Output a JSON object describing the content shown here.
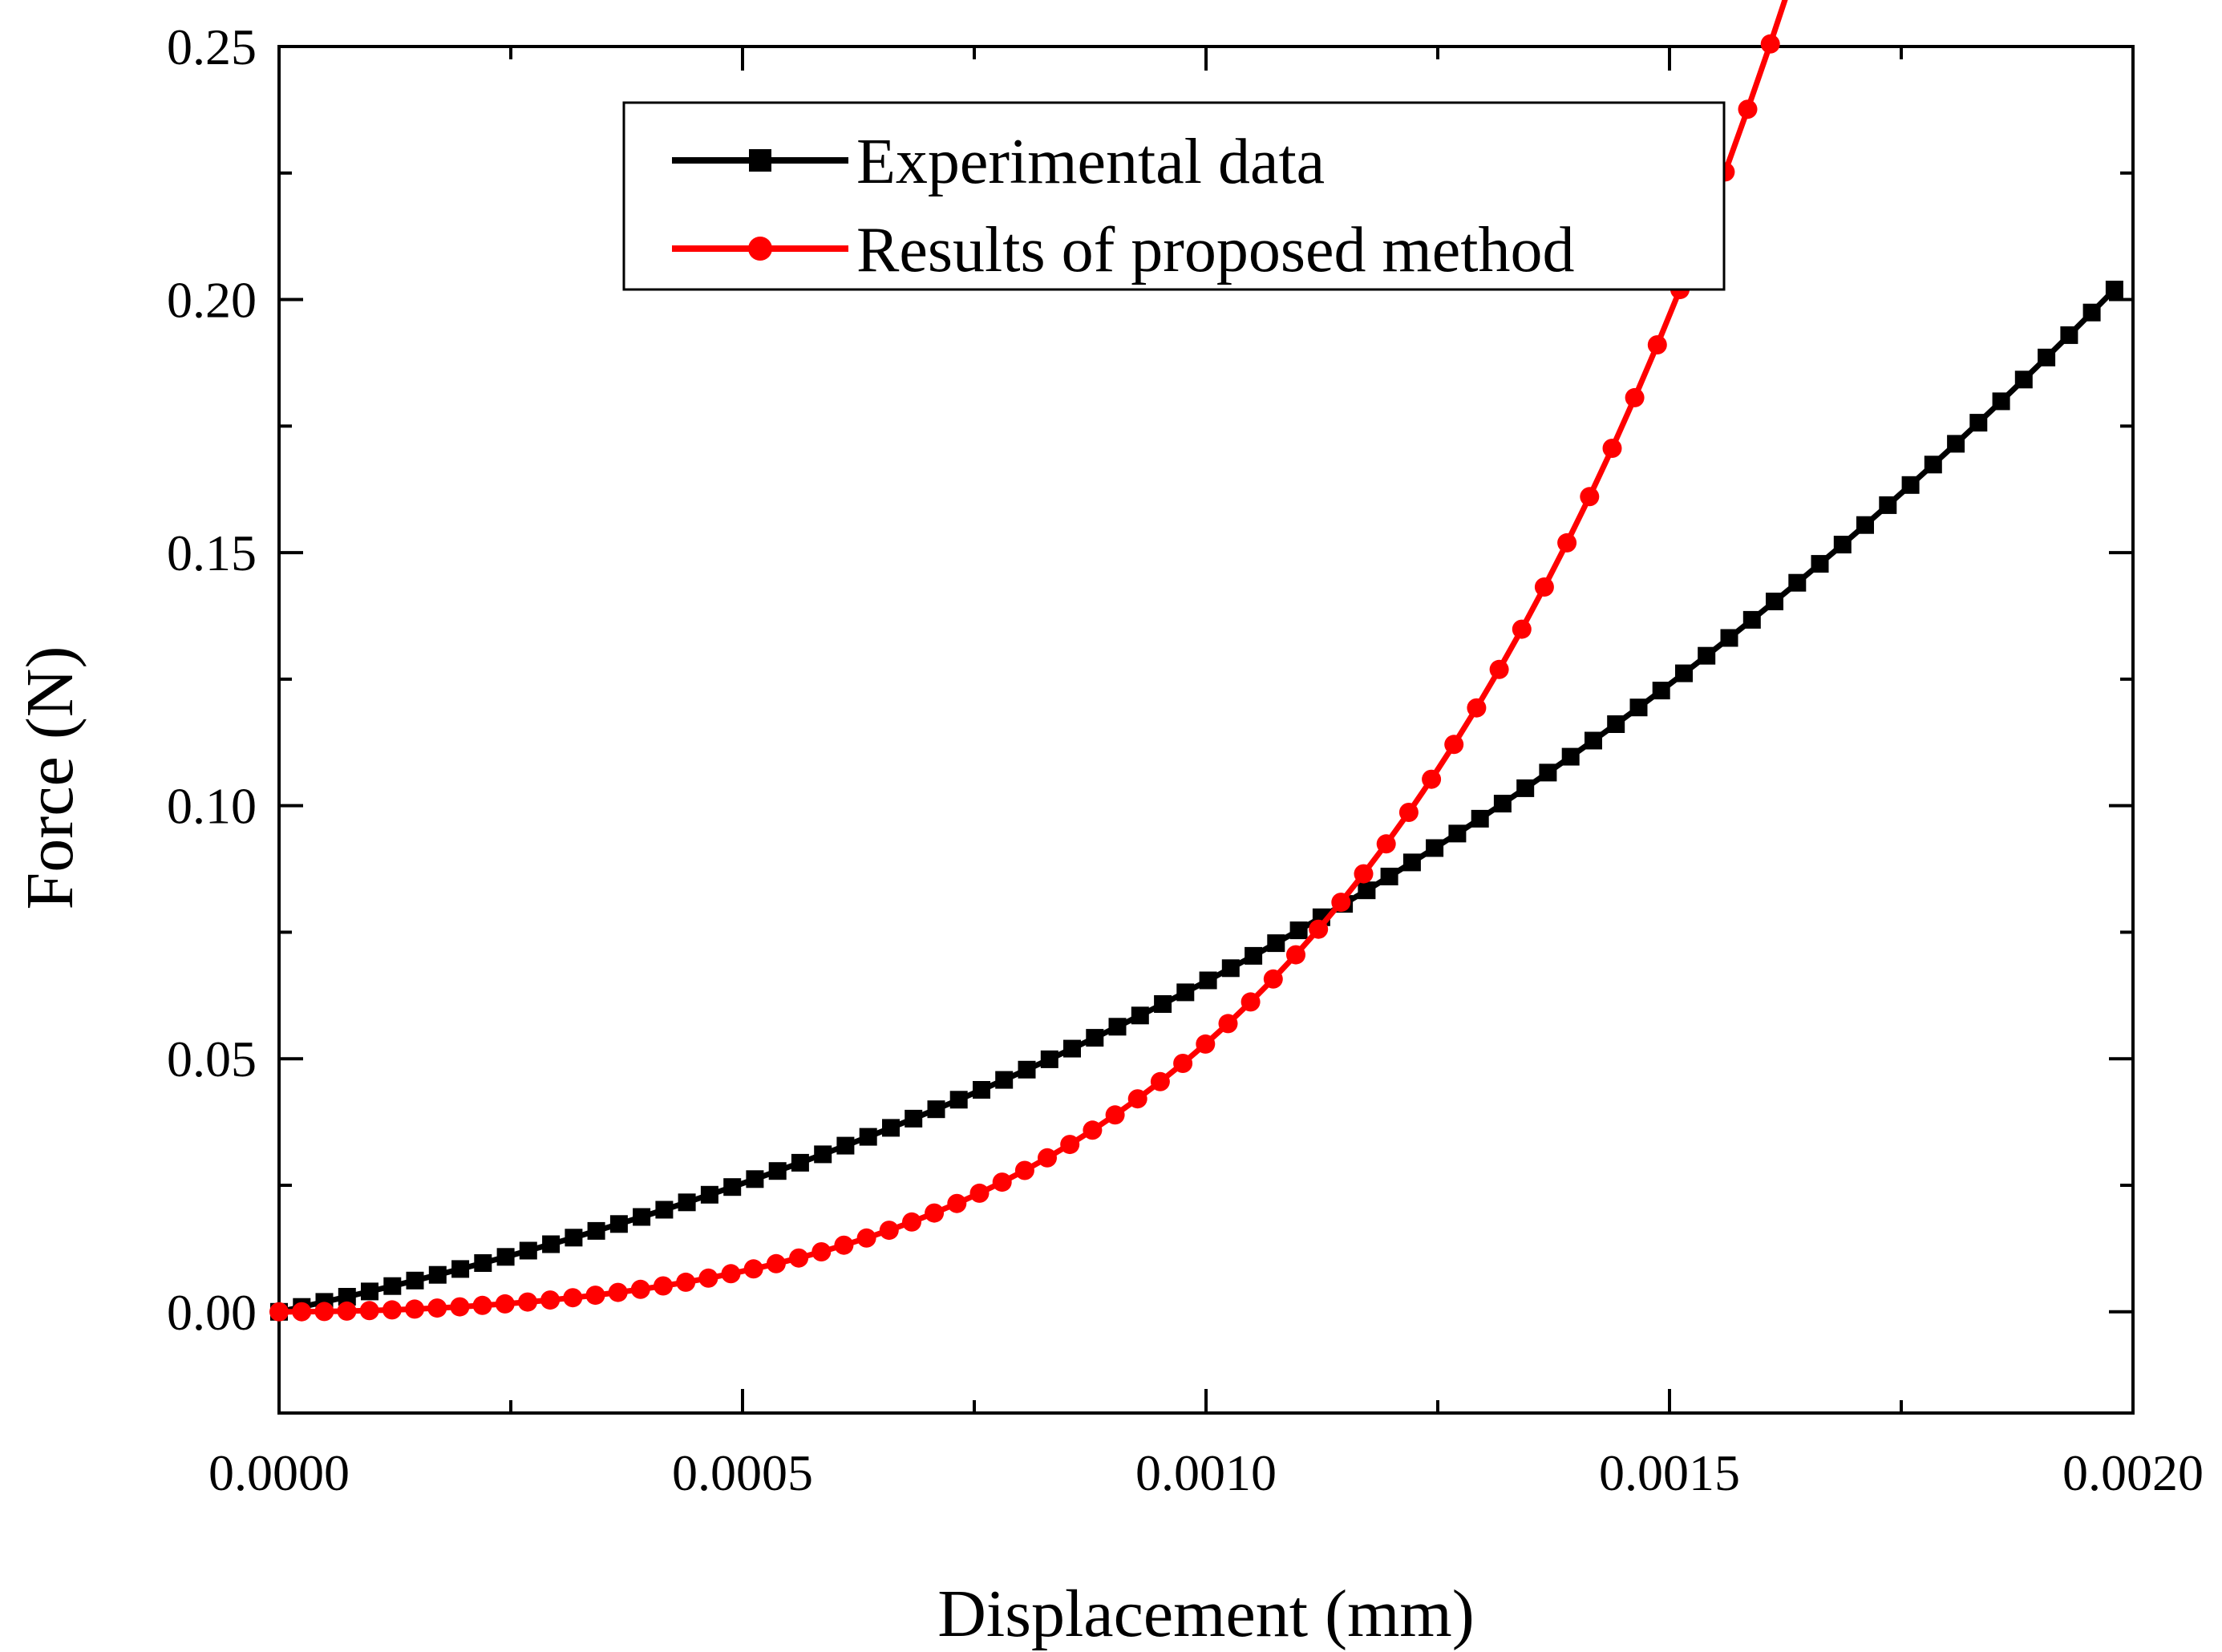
{
  "chart_data": {
    "type": "line",
    "xlabel": "Displacement (mm)",
    "ylabel": "Force (N)",
    "xlim": [
      0,
      0.002
    ],
    "ylim": [
      -0.02,
      0.25
    ],
    "x_ticks": [
      "0.0000",
      "0.0005",
      "0.0010",
      "0.0015",
      "0.0020"
    ],
    "y_ticks": [
      "0.00",
      "0.05",
      "0.10",
      "0.15",
      "0.20",
      "0.25"
    ],
    "grid": false,
    "legend_position": "top-center",
    "series": [
      {
        "name": "Experimental data",
        "color": "#000000",
        "marker": "square",
        "formula": "F = 5.67e6*x^3 + 2.06e4*x^2 + 39*x",
        "x_start": 0,
        "x_end": 0.00198,
        "points": 82
      },
      {
        "name": "Results of proposed method",
        "color": "#ff0000",
        "marker": "circle",
        "formula": "F = 2.7e10*x^4 + 1.5e6*x^3 + 2.45e4*x^2",
        "x_start": 0,
        "x_end": 0.00195,
        "points": 81
      }
    ]
  }
}
